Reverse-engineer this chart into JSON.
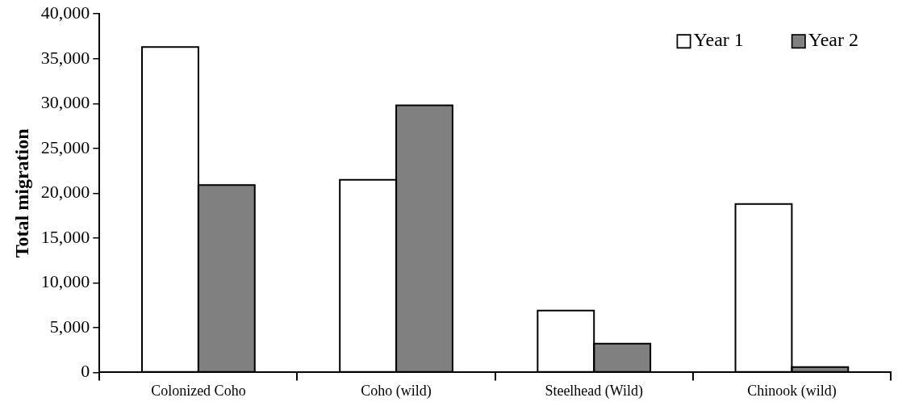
{
  "chart_data": {
    "type": "bar",
    "ylabel": "Total migration",
    "categories": [
      "Colonized Coho",
      "Coho (wild)",
      "Steelhead (Wild)",
      "Chinook (wild)"
    ],
    "series": [
      {
        "name": "Year 1",
        "color": "#ffffff",
        "values": [
          36300,
          21500,
          6900,
          18800
        ]
      },
      {
        "name": "Year 2",
        "color": "#808080",
        "values": [
          20900,
          29800,
          3200,
          600
        ]
      }
    ],
    "ylim": [
      0,
      40000
    ],
    "yticks": [
      {
        "value": 0,
        "label": "0"
      },
      {
        "value": 5000,
        "label": "5,000"
      },
      {
        "value": 10000,
        "label": "10,000"
      },
      {
        "value": 15000,
        "label": "15,000"
      },
      {
        "value": 20000,
        "label": "20,000"
      },
      {
        "value": 25000,
        "label": "25,000"
      },
      {
        "value": 30000,
        "label": "30,000"
      },
      {
        "value": 35000,
        "label": "35,000"
      },
      {
        "value": 40000,
        "label": "40,000"
      }
    ],
    "grid": false,
    "legend": "top right"
  }
}
